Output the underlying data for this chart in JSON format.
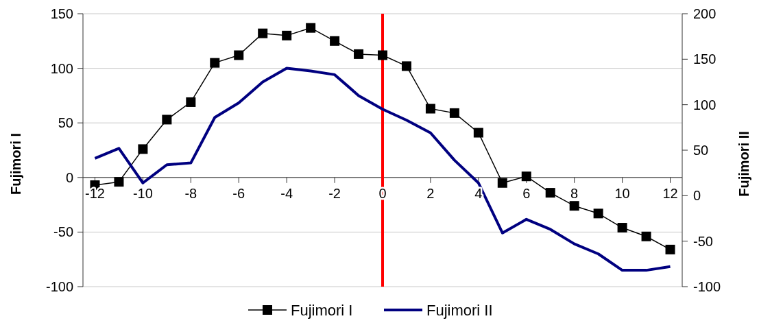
{
  "chart_data": {
    "type": "line",
    "ylabel": "Fujimori I",
    "y2label": "Fujimori II",
    "x": [
      -12,
      -11,
      -10,
      -9,
      -8,
      -7,
      -6,
      -5,
      -4,
      -3,
      -2,
      -1,
      0,
      1,
      2,
      3,
      4,
      5,
      6,
      7,
      8,
      9,
      10,
      11,
      12
    ],
    "xlim": [
      -12.5,
      12.5
    ],
    "xticks": [
      -12,
      -10,
      -8,
      -6,
      -4,
      -2,
      0,
      2,
      4,
      6,
      8,
      10,
      12
    ],
    "marker": "square",
    "ylim": [
      -100,
      150
    ],
    "yticks": [
      -100,
      -50,
      0,
      50,
      100,
      150
    ],
    "y2lim": [
      -100,
      200
    ],
    "y2ticks": [
      -100,
      -50,
      0,
      50,
      100,
      150,
      200
    ],
    "grid": "y",
    "legend": "bottom",
    "series": [
      {
        "name": "Fujimori I",
        "color": "#000000",
        "values": [
          -7,
          -4,
          26,
          53,
          69,
          105,
          112,
          132,
          130,
          137,
          125,
          113,
          112,
          102,
          63,
          59,
          41,
          -5,
          1,
          -14,
          -26,
          -33,
          -46,
          -54,
          -66
        ]
      },
      {
        "name": "Fujimori II",
        "color": "#000080",
        "axis": "y2",
        "marker": "none",
        "values": [
          41,
          52,
          14,
          34,
          36,
          86,
          102,
          125,
          140,
          137,
          133,
          110,
          95,
          83,
          69,
          39,
          14,
          -41,
          -26,
          -37,
          -53,
          -64,
          -82,
          -82,
          -78
        ]
      }
    ],
    "ref_lines": [
      {
        "axis": "x",
        "value": 0,
        "color": "#ff0000"
      }
    ]
  }
}
